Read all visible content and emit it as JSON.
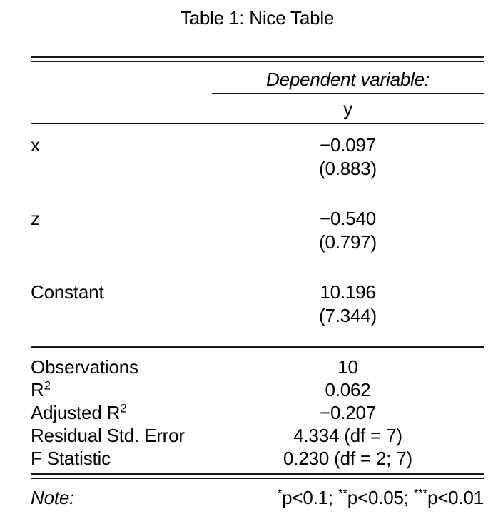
{
  "title": "Table 1: Nice Table",
  "colors": {
    "text": "#000000",
    "rule": "#1a1a1a",
    "background": "#ffffff"
  },
  "header": {
    "dependent_variable_label": "Dependent variable:",
    "dependent_variable_name": "y"
  },
  "coefficients": [
    {
      "label": "x",
      "estimate": "−0.097",
      "std_error": "(0.883)"
    },
    {
      "label": "z",
      "estimate": "−0.540",
      "std_error": "(0.797)"
    },
    {
      "label": "Constant",
      "estimate": "10.196",
      "std_error": "(7.344)"
    }
  ],
  "statistics": [
    {
      "label": "Observations",
      "superscript": "",
      "value": "10"
    },
    {
      "label": "R",
      "superscript": "2",
      "value": "0.062"
    },
    {
      "label": "Adjusted R",
      "superscript": "2",
      "value": "−0.207"
    },
    {
      "label": "Residual Std. Error",
      "superscript": "",
      "value": "4.334 (df = 7)"
    },
    {
      "label": "F Statistic",
      "superscript": "",
      "value": "0.230 (df = 2; 7)"
    }
  ],
  "note": {
    "label": "Note:",
    "parts": [
      {
        "stars": "*",
        "text": "p<0.1; "
      },
      {
        "stars": "**",
        "text": "p<0.05; "
      },
      {
        "stars": "***",
        "text": "p<0.01"
      }
    ]
  }
}
